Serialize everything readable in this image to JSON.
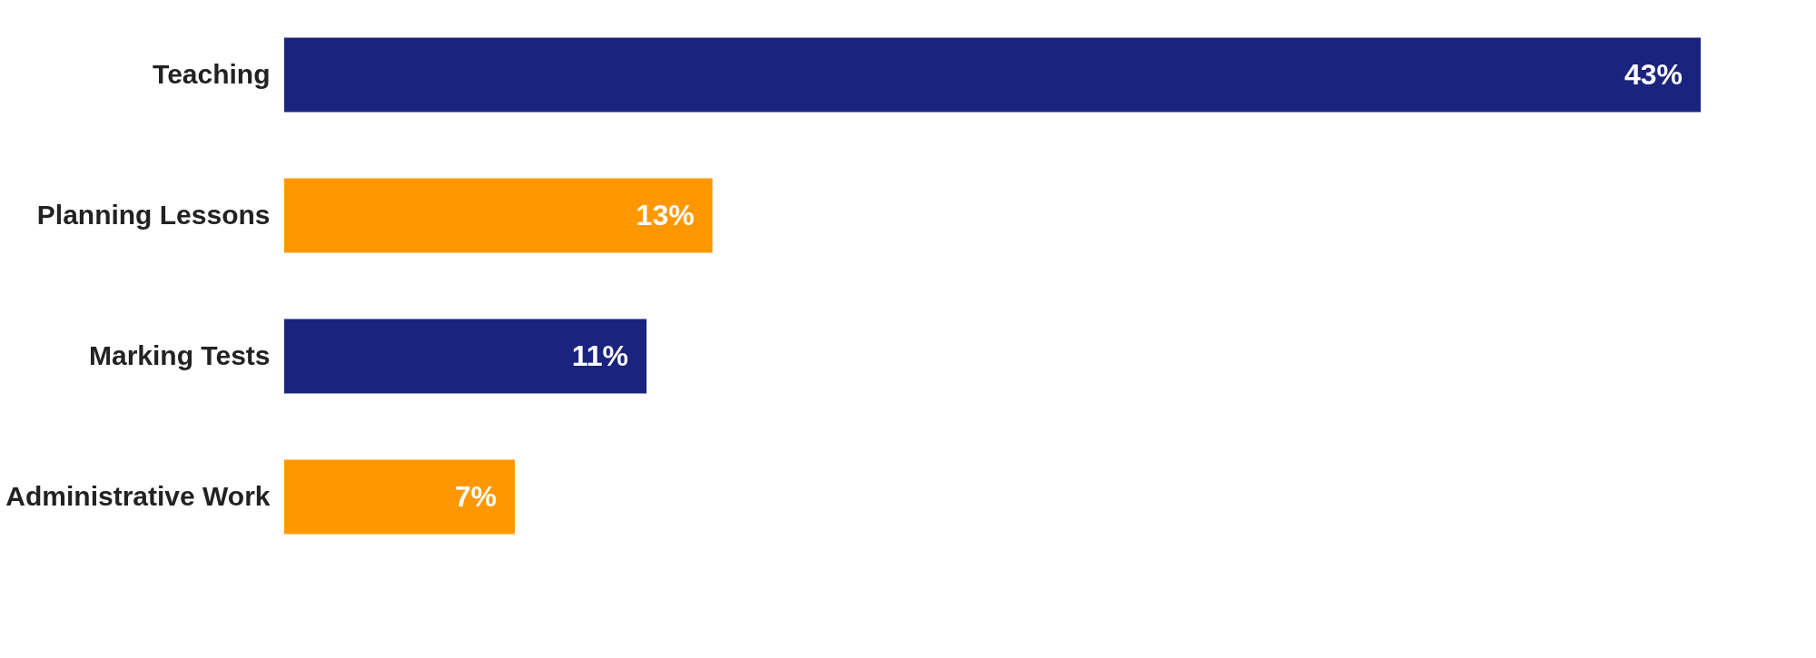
{
  "chart_data": {
    "type": "bar",
    "orientation": "horizontal",
    "categories": [
      "Teaching",
      "Planning Lessons",
      "Marking Tests",
      "Administrative Work"
    ],
    "values": [
      43,
      13,
      11,
      7
    ],
    "colors": [
      "#1a237e",
      "#ff9800",
      "#1a237e",
      "#ff9800"
    ],
    "value_labels": [
      "43%",
      "13%",
      "11%",
      "7%"
    ],
    "tick_labels": "y",
    "grid": false
  }
}
